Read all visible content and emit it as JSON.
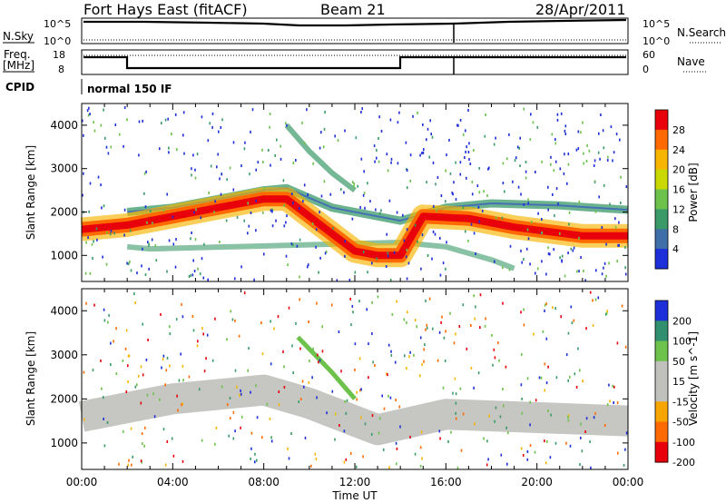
{
  "header": {
    "title": "Fort Hays East (fitACF)",
    "beam": "Beam 21",
    "date": "28/Apr/2011"
  },
  "top_panels": {
    "nsky_label": "N.Sky",
    "nsearch_label": "N.Search",
    "nsky_ticks": [
      "10^5",
      "10^0"
    ],
    "nsearch_ticks": [
      "10^5",
      "10^0"
    ],
    "freq_label_1": "Freq.",
    "freq_label_2": "[MHz]",
    "freq_ticks": [
      "18",
      "8"
    ],
    "nave_label": "Nave",
    "nave_ticks": [
      "60",
      "0"
    ],
    "cpid_label": "CPID",
    "cpid_value": "normal 150 IF"
  },
  "chart_data": [
    {
      "type": "heatmap",
      "name": "power",
      "ylabel": "Slant Range [km]",
      "xlabel": "",
      "y_ticks": [
        1000,
        2000,
        3000,
        4000
      ],
      "ylim": [
        400,
        4500
      ],
      "xlim": [
        0,
        24
      ],
      "colorbar": {
        "label": "Power [dB]",
        "ticks": [
          "28",
          "24",
          "20",
          "16",
          "12",
          "8",
          "4"
        ],
        "colors": [
          "#e8000b",
          "#ff6a00",
          "#f7b500",
          "#c8d800",
          "#6cc24a",
          "#3a9a68",
          "#3f6fa8",
          "#1d2fd8"
        ]
      },
      "features": [
        {
          "name": "main band",
          "points": [
            [
              0,
              1600
            ],
            [
              2,
              1700
            ],
            [
              4,
              1900
            ],
            [
              6,
              2100
            ],
            [
              8,
              2300
            ],
            [
              9,
              2300
            ],
            [
              10,
              1900
            ],
            [
              11,
              1500
            ],
            [
              12,
              1100
            ],
            [
              13,
              1000
            ],
            [
              14,
              1000
            ],
            [
              15,
              1900
            ],
            [
              17,
              1850
            ],
            [
              19,
              1650
            ],
            [
              22,
              1450
            ],
            [
              24,
              1450
            ]
          ]
        },
        {
          "name": "upper band",
          "points": [
            [
              2,
              2000
            ],
            [
              4,
              2100
            ],
            [
              6,
              2300
            ],
            [
              8,
              2500
            ],
            [
              9,
              2550
            ],
            [
              11,
              2100
            ],
            [
              14,
              1800
            ],
            [
              16,
              2100
            ],
            [
              18,
              2200
            ],
            [
              21,
              2150
            ],
            [
              24,
              2050
            ]
          ]
        },
        {
          "name": "lower band",
          "points": [
            [
              2,
              1200
            ],
            [
              3,
              1150
            ],
            [
              14,
              1300
            ],
            [
              16,
              1200
            ],
            [
              18,
              900
            ],
            [
              19,
              700
            ]
          ]
        },
        {
          "name": "high streak",
          "points": [
            [
              9,
              4000
            ],
            [
              10,
              3400
            ],
            [
              11,
              2900
            ],
            [
              12,
              2500
            ]
          ]
        }
      ]
    },
    {
      "type": "heatmap",
      "name": "velocity",
      "ylabel": "Slant Range [km]",
      "xlabel": "Time UT",
      "x_ticks": [
        "00:00",
        "04:00",
        "08:00",
        "12:00",
        "16:00",
        "20:00",
        "00:00"
      ],
      "y_ticks": [
        1000,
        2000,
        3000,
        4000
      ],
      "ylim": [
        400,
        4500
      ],
      "xlim": [
        0,
        24
      ],
      "colorbar": {
        "label": "Velocity [m s^-1]",
        "ticks": [
          "200",
          "100",
          "50",
          "15",
          "-15",
          "-50",
          "-100",
          "-200"
        ],
        "colors": [
          "#1d2fd8",
          "#2f8f6f",
          "#6cc24a",
          "#c0c0bc",
          "#c0c0bc",
          "#f7a500",
          "#ff6a00",
          "#e8000b"
        ]
      },
      "features": [
        {
          "name": "ground scatter",
          "points": [
            [
              0,
              1600
            ],
            [
              4,
              2000
            ],
            [
              8,
              2200
            ],
            [
              10,
              1900
            ],
            [
              13,
              1300
            ],
            [
              16,
              1650
            ],
            [
              24,
              1500
            ]
          ]
        },
        {
          "name": "green streak",
          "points": [
            [
              9.5,
              3400
            ],
            [
              11,
              2600
            ],
            [
              12,
              2000
            ]
          ]
        }
      ]
    }
  ],
  "colors": {
    "red": "#e8000b",
    "orange": "#ff6a00",
    "yellow": "#f7b500",
    "green": "#6cc24a",
    "teal": "#3a9a68",
    "blue": "#1d2fd8",
    "gray": "#c0c0bc"
  }
}
